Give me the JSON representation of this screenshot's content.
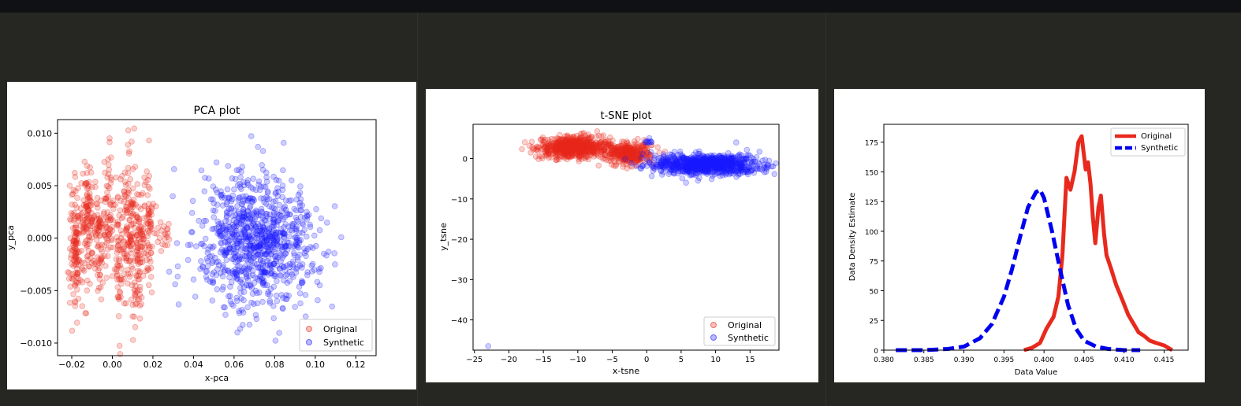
{
  "chart_data": [
    {
      "type": "scatter",
      "title": "PCA plot",
      "xlabel": "x-pca",
      "ylabel": "y_pca",
      "xlim": [
        -0.027,
        0.13
      ],
      "ylim": [
        -0.0112,
        0.0113
      ],
      "xticks": [
        -0.02,
        0.0,
        0.02,
        0.04,
        0.06,
        0.08,
        0.1,
        0.12
      ],
      "xtick_labels": [
        "−0.02",
        "0.00",
        "0.02",
        "0.04",
        "0.06",
        "0.08",
        "0.10",
        "0.12"
      ],
      "yticks": [
        -0.01,
        -0.005,
        0.0,
        0.005,
        0.01
      ],
      "ytick_labels": [
        "−0.010",
        "−0.005",
        "0.000",
        "0.005",
        "0.010"
      ],
      "legend_position": "bottom-right",
      "series": [
        {
          "name": "Original",
          "color": "#e8291d",
          "clusters": [
            {
              "center": [
                -0.018,
                -0.0005
              ],
              "spread": [
                0.0015,
                0.003
              ],
              "n": 130
            },
            {
              "center": [
                -0.012,
                0.0015
              ],
              "spread": [
                0.0015,
                0.0028
              ],
              "n": 110
            },
            {
              "center": [
                -0.007,
                -0.0005
              ],
              "spread": [
                0.0012,
                0.0025
              ],
              "n": 70
            },
            {
              "center": [
                -0.002,
                0.002
              ],
              "spread": [
                0.0012,
                0.003
              ],
              "n": 70
            },
            {
              "center": [
                0.003,
                -0.001
              ],
              "spread": [
                0.0012,
                0.003
              ],
              "n": 60
            },
            {
              "center": [
                0.008,
                0.0015
              ],
              "spread": [
                0.0015,
                0.0035
              ],
              "n": 110
            },
            {
              "center": [
                0.013,
                -0.0005
              ],
              "spread": [
                0.0015,
                0.0035
              ],
              "n": 110
            },
            {
              "center": [
                0.018,
                0.0005
              ],
              "spread": [
                0.0012,
                0.003
              ],
              "n": 60
            },
            {
              "center": [
                0.025,
                0.0003
              ],
              "spread": [
                0.0015,
                0.0008
              ],
              "n": 20
            }
          ]
        },
        {
          "name": "Synthetic",
          "color": "#1a1aff",
          "clusters": [
            {
              "center": [
                0.071,
                -0.0003
              ],
              "spread": [
                0.0145,
                0.003
              ],
              "n": 900
            }
          ]
        }
      ]
    },
    {
      "type": "scatter",
      "title": "t-SNE plot",
      "xlabel": "x-tsne",
      "ylabel": "y_tsne",
      "xlim": [
        -25.2,
        19.2
      ],
      "ylim": [
        -47.5,
        8.5
      ],
      "xticks": [
        -25,
        -20,
        -15,
        -10,
        -5,
        0,
        5,
        10,
        15
      ],
      "xtick_labels": [
        "−25",
        "−20",
        "−15",
        "−10",
        "−5",
        "0",
        "5",
        "10",
        "15"
      ],
      "yticks": [
        -40,
        -30,
        -20,
        -10,
        0
      ],
      "ytick_labels": [
        "−40",
        "−30",
        "−20",
        "−10",
        "0"
      ],
      "legend_position": "bottom-right",
      "series": [
        {
          "name": "Original",
          "color": "#e8291d",
          "clusters": [
            {
              "center": [
                -10.5,
                2.8
              ],
              "spread": [
                2.6,
                1.2
              ],
              "n": 700
            },
            {
              "center": [
                -2.5,
                1.2
              ],
              "spread": [
                1.6,
                1.3
              ],
              "n": 350
            }
          ]
        },
        {
          "name": "Synthetic",
          "color": "#1a1aff",
          "clusters": [
            {
              "center": [
                8.5,
                -1.5
              ],
              "spread": [
                3.8,
                1.2
              ],
              "n": 900
            },
            {
              "center": [
                0.3,
                4.2
              ],
              "spread": [
                0.3,
                0.4
              ],
              "n": 10
            }
          ],
          "points": [
            [
              -23,
              -46.5
            ],
            [
              13,
              4
            ]
          ]
        }
      ]
    },
    {
      "type": "line",
      "title": "",
      "xlabel": "Data Value",
      "ylabel": "Data Density Estimate",
      "xlim": [
        0.38,
        0.418
      ],
      "ylim": [
        0,
        190
      ],
      "xticks": [
        0.38,
        0.385,
        0.39,
        0.395,
        0.4,
        0.405,
        0.41,
        0.415
      ],
      "xtick_labels": [
        "0.380",
        "0.385",
        "0.390",
        "0.395",
        "0.400",
        "0.405",
        "0.410",
        "0.415"
      ],
      "yticks": [
        0,
        25,
        50,
        75,
        100,
        125,
        150,
        175
      ],
      "ytick_labels": [
        "0",
        "25",
        "50",
        "75",
        "100",
        "125",
        "150",
        "175"
      ],
      "legend_position": "top-right",
      "series": [
        {
          "name": "Original",
          "color": "#e8291d",
          "style": "solid",
          "x": [
            0.3975,
            0.3985,
            0.3995,
            0.4003,
            0.4012,
            0.4018,
            0.4023,
            0.4028,
            0.4033,
            0.4038,
            0.4043,
            0.4047,
            0.4052,
            0.4055,
            0.4058,
            0.4061,
            0.4064,
            0.4068,
            0.4071,
            0.4075,
            0.4078,
            0.4083,
            0.409,
            0.4098,
            0.4105,
            0.4112,
            0.4118,
            0.4125,
            0.4132,
            0.414,
            0.415,
            0.416
          ],
          "y": [
            0,
            2,
            6,
            18,
            28,
            45,
            80,
            145,
            135,
            150,
            175,
            180,
            152,
            158,
            140,
            112,
            90,
            120,
            130,
            98,
            80,
            70,
            55,
            42,
            30,
            22,
            15,
            12,
            8,
            6,
            4,
            0
          ]
        },
        {
          "name": "Synthetic",
          "color": "#0000f0",
          "style": "dashed",
          "x": [
            0.3815,
            0.385,
            0.388,
            0.39,
            0.392,
            0.3935,
            0.395,
            0.396,
            0.397,
            0.398,
            0.399,
            0.3995,
            0.4,
            0.401,
            0.402,
            0.403,
            0.404,
            0.405,
            0.4065,
            0.408,
            0.41,
            0.412
          ],
          "y": [
            0,
            0,
            1,
            3,
            10,
            22,
            45,
            68,
            95,
            120,
            133,
            135,
            128,
            100,
            68,
            38,
            18,
            8,
            3,
            1,
            0,
            0
          ]
        }
      ]
    }
  ]
}
